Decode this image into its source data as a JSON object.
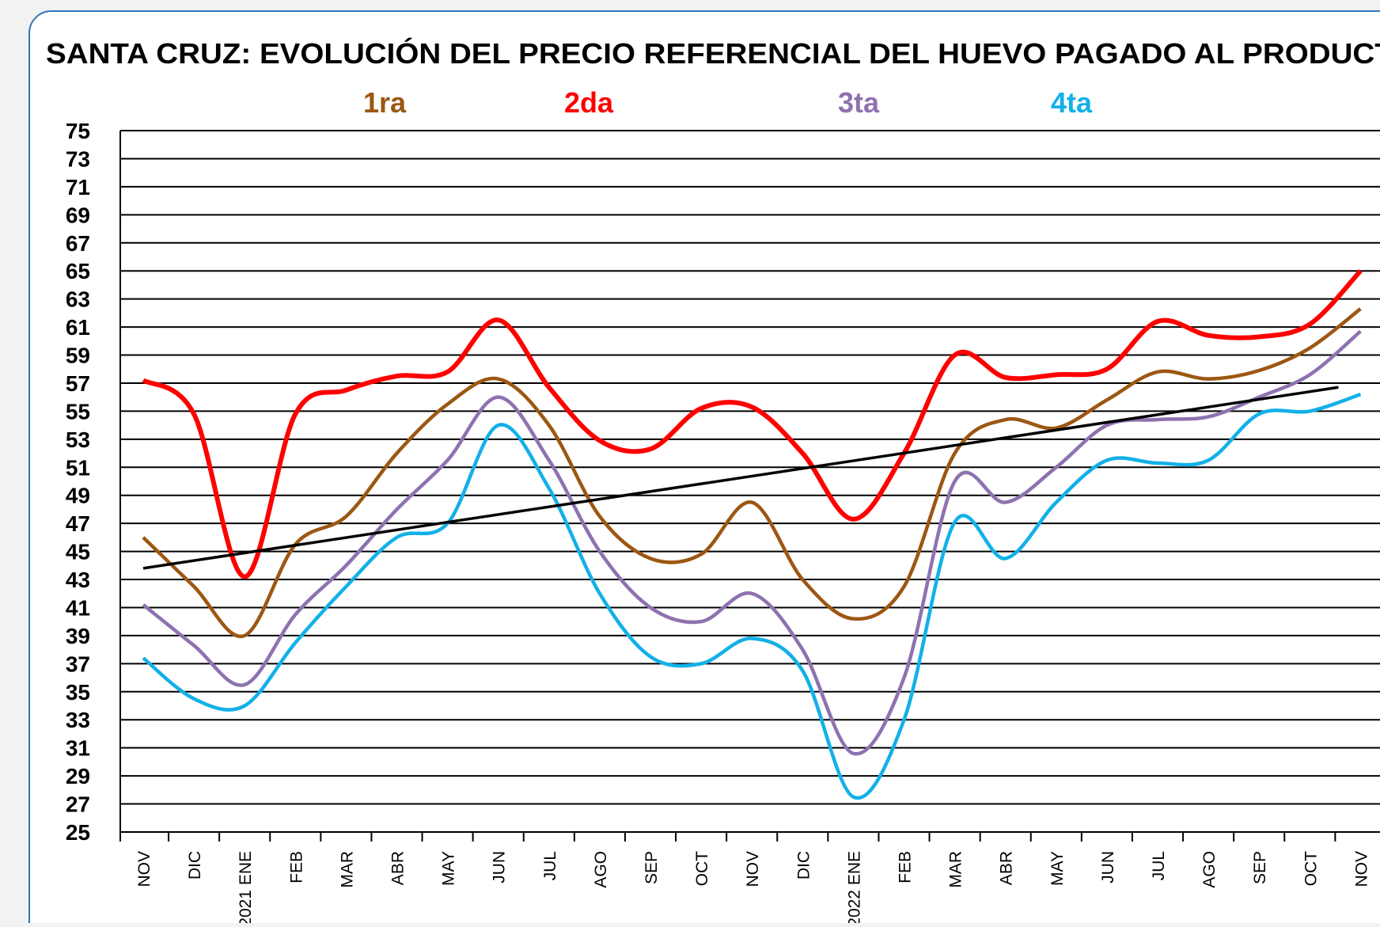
{
  "chart_data": {
    "type": "line",
    "title": "SANTA CRUZ: EVOLUCIÓN DEL PRECIO REFERENCIAL DEL HUEVO PAGADO AL PRODUCTOR",
    "categories": [
      "NOV",
      "DIC",
      "2021 ENE",
      "FEB",
      "MAR",
      "ABR",
      "MAY",
      "JUN",
      "JUL",
      "AGO",
      "SEP",
      "OCT",
      "NOV",
      "DIC",
      "2022 ENE",
      "FEB",
      "MAR",
      "ABR",
      "MAY",
      "JUN",
      "JUL",
      "AGO",
      "SEP",
      "OCT",
      "NOV"
    ],
    "series": [
      {
        "name": "1ra",
        "color": "#9c5712",
        "values": [
          46,
          42.5,
          39,
          45.5,
          47.5,
          52,
          55.5,
          57.3,
          54,
          47.5,
          44.5,
          44.8,
          48.5,
          43,
          40.2,
          42.5,
          52,
          54.4,
          53.8,
          55.8,
          57.8,
          57.3,
          57.9,
          59.5,
          62.3
        ]
      },
      {
        "name": "2da",
        "color": "#ff0000",
        "values": [
          57.2,
          54.8,
          43.2,
          54.8,
          56.5,
          57.5,
          57.8,
          61.5,
          56.7,
          52.9,
          52.3,
          55.2,
          55.3,
          52,
          47.3,
          52,
          59,
          57.4,
          57.6,
          58,
          61.4,
          60.4,
          60.3,
          61.2,
          65
        ]
      },
      {
        "name": "3ta",
        "color": "#8e72b0",
        "values": [
          41.2,
          38.3,
          35.5,
          40.5,
          44,
          48,
          51.5,
          56,
          51.5,
          45,
          41,
          40,
          42,
          38,
          30.6,
          36,
          50,
          48.5,
          51,
          54,
          54.4,
          54.6,
          56,
          57.6,
          60.7
        ]
      },
      {
        "name": "4ta",
        "color": "#12b0e8",
        "values": [
          37.4,
          34.5,
          34,
          38.5,
          42.5,
          46,
          47,
          54,
          49.5,
          42,
          37.5,
          37,
          38.8,
          36.5,
          27.5,
          33,
          47.1,
          44.5,
          48.5,
          51.5,
          51.3,
          51.5,
          54.8,
          55,
          56.2
        ]
      }
    ],
    "trend": {
      "color": "#000000",
      "values": [
        43.8,
        56.7
      ]
    },
    "ylim": [
      25,
      75
    ],
    "yticks": [
      25,
      27,
      29,
      31,
      33,
      35,
      37,
      39,
      41,
      43,
      45,
      47,
      49,
      51,
      53,
      55,
      57,
      59,
      61,
      63,
      65,
      67,
      69,
      71,
      73,
      75
    ],
    "grid": true
  }
}
